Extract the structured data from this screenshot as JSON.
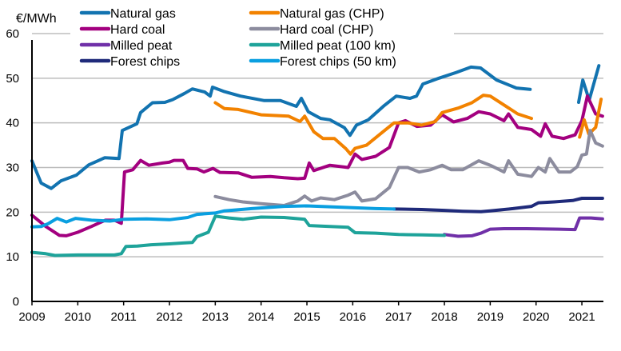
{
  "chart_data": {
    "type": "line",
    "ylabel": "€/MWh",
    "xlim": [
      2009,
      2021.47
    ],
    "ylim": [
      0,
      60
    ],
    "yticks": [
      "0",
      "10",
      "20",
      "30",
      "40",
      "50",
      "60"
    ],
    "xticks": [
      "2009",
      "2010",
      "2011",
      "2012",
      "2013",
      "2014",
      "2015",
      "2016",
      "2017",
      "2018",
      "2019",
      "2020",
      "2021"
    ],
    "grid": "horizontal",
    "legend_position": "top",
    "series": [
      {
        "name": "Natural gas",
        "color": "#1273b0",
        "points": [
          [
            2009.0,
            31.5
          ],
          [
            2009.2,
            26.5
          ],
          [
            2009.42,
            25.3
          ],
          [
            2009.63,
            27
          ],
          [
            2009.97,
            28.3
          ],
          [
            2010.24,
            30.6
          ],
          [
            2010.59,
            32.2
          ],
          [
            2010.9,
            32
          ],
          [
            2010.97,
            38.3
          ],
          [
            2011.29,
            39.8
          ],
          [
            2011.37,
            42.3
          ],
          [
            2011.63,
            44.5
          ],
          [
            2011.9,
            44.6
          ],
          [
            2012.07,
            45.2
          ],
          [
            2012.33,
            46.6
          ],
          [
            2012.5,
            47.6
          ],
          [
            2012.77,
            46.9
          ],
          [
            2012.89,
            46
          ],
          [
            2012.94,
            48
          ],
          [
            2013.2,
            47
          ],
          [
            2013.55,
            46
          ],
          [
            2014.07,
            45
          ],
          [
            2014.42,
            45
          ],
          [
            2014.77,
            43.7
          ],
          [
            2014.88,
            45.5
          ],
          [
            2015.03,
            42.5
          ],
          [
            2015.3,
            41
          ],
          [
            2015.5,
            40.7
          ],
          [
            2015.82,
            38.9
          ],
          [
            2015.94,
            37.2
          ],
          [
            2016.08,
            39.5
          ],
          [
            2016.34,
            40.7
          ],
          [
            2016.69,
            43.9
          ],
          [
            2016.95,
            46
          ],
          [
            2017.25,
            45.5
          ],
          [
            2017.39,
            46
          ],
          [
            2017.53,
            48.7
          ],
          [
            2017.88,
            50
          ],
          [
            2018.26,
            51.3
          ],
          [
            2018.58,
            52.5
          ],
          [
            2018.79,
            52.3
          ],
          [
            2019.14,
            49.6
          ],
          [
            2019.57,
            47.8
          ],
          [
            2019.87,
            47.5
          ],
          null,
          [
            2020.93,
            44.6
          ],
          [
            2021.02,
            49.6
          ],
          [
            2021.16,
            45.1
          ],
          [
            2021.37,
            52.8
          ]
        ]
      },
      {
        "name": "Hard coal",
        "color": "#a3007f",
        "points": [
          [
            2009.0,
            19.3
          ],
          [
            2009.3,
            16.8
          ],
          [
            2009.6,
            14.8
          ],
          [
            2009.75,
            14.7
          ],
          [
            2010.0,
            15.5
          ],
          [
            2010.3,
            16.8
          ],
          [
            2010.6,
            18.2
          ],
          [
            2010.8,
            18.2
          ],
          [
            2010.95,
            17.5
          ],
          [
            2011.02,
            29
          ],
          [
            2011.2,
            29.5
          ],
          [
            2011.37,
            31.6
          ],
          [
            2011.55,
            30.5
          ],
          [
            2011.85,
            31
          ],
          [
            2012.0,
            31.2
          ],
          [
            2012.1,
            31.6
          ],
          [
            2012.3,
            31.6
          ],
          [
            2012.4,
            29.8
          ],
          [
            2012.6,
            29.7
          ],
          [
            2012.75,
            29
          ],
          [
            2012.95,
            29.8
          ],
          [
            2013.1,
            28.9
          ],
          [
            2013.5,
            28.8
          ],
          [
            2013.8,
            27.8
          ],
          [
            2014.2,
            28
          ],
          [
            2014.5,
            27.7
          ],
          [
            2014.8,
            27.5
          ],
          [
            2014.95,
            27.6
          ],
          [
            2015.05,
            31
          ],
          [
            2015.15,
            29.3
          ],
          [
            2015.5,
            30.5
          ],
          [
            2015.9,
            30
          ],
          [
            2016.05,
            33
          ],
          [
            2016.2,
            31.8
          ],
          [
            2016.5,
            32.5
          ],
          [
            2016.8,
            34.5
          ],
          [
            2017.0,
            40
          ],
          [
            2017.15,
            40.5
          ],
          [
            2017.4,
            39.2
          ],
          [
            2017.7,
            39.5
          ],
          [
            2017.95,
            41.8
          ],
          [
            2018.2,
            40.2
          ],
          [
            2018.5,
            41
          ],
          [
            2018.75,
            42.5
          ],
          [
            2019.0,
            42
          ],
          [
            2019.3,
            40.5
          ],
          [
            2019.4,
            42
          ],
          [
            2019.6,
            39
          ],
          [
            2019.9,
            38.5
          ],
          [
            2020.1,
            37
          ],
          [
            2020.2,
            39.8
          ],
          [
            2020.35,
            37
          ],
          [
            2020.6,
            36.5
          ],
          [
            2020.85,
            37.3
          ],
          [
            2021.0,
            40.5
          ],
          [
            2021.12,
            46
          ],
          [
            2021.3,
            42
          ],
          [
            2021.45,
            41.5
          ]
        ]
      },
      {
        "name": "Milled peat",
        "color": "#7030a8",
        "points": [
          [
            2018.0,
            15
          ],
          [
            2018.3,
            14.6
          ],
          [
            2018.6,
            14.7
          ],
          [
            2018.8,
            15.3
          ],
          [
            2019.0,
            16.2
          ],
          [
            2019.3,
            16.3
          ],
          [
            2019.8,
            16.3
          ],
          [
            2020.5,
            16.2
          ],
          [
            2020.85,
            16.1
          ],
          [
            2020.95,
            18.7
          ],
          [
            2021.2,
            18.7
          ],
          [
            2021.45,
            18.5
          ]
        ]
      },
      {
        "name": "Forest chips",
        "color": "#1f2a7a",
        "points": [
          [
            2016.9,
            20.7
          ],
          [
            2017.5,
            20.6
          ],
          [
            2018.0,
            20.4
          ],
          [
            2018.4,
            20.2
          ],
          [
            2018.8,
            20.1
          ],
          [
            2019.0,
            20.3
          ],
          [
            2019.5,
            20.8
          ],
          [
            2019.9,
            21.3
          ],
          [
            2020.05,
            22.1
          ],
          [
            2020.4,
            22.3
          ],
          [
            2020.8,
            22.6
          ],
          [
            2021.0,
            23.1
          ],
          [
            2021.45,
            23.1
          ]
        ]
      },
      {
        "name": "Natural gas (CHP)",
        "color": "#f28200",
        "points": [
          [
            2013.0,
            44.5
          ],
          [
            2013.2,
            43.2
          ],
          [
            2013.5,
            43
          ],
          [
            2014.0,
            41.8
          ],
          [
            2014.6,
            41.5
          ],
          [
            2014.85,
            40.3
          ],
          [
            2014.95,
            41.5
          ],
          [
            2015.15,
            38
          ],
          [
            2015.35,
            36.5
          ],
          [
            2015.6,
            36.5
          ],
          [
            2015.85,
            34.2
          ],
          [
            2015.95,
            33
          ],
          [
            2016.05,
            34.3
          ],
          [
            2016.3,
            35
          ],
          [
            2016.6,
            37.5
          ],
          [
            2016.9,
            40
          ],
          [
            2017.2,
            40
          ],
          [
            2017.5,
            39.5
          ],
          [
            2017.8,
            40.3
          ],
          [
            2017.95,
            42.3
          ],
          [
            2018.3,
            43.3
          ],
          [
            2018.6,
            44.5
          ],
          [
            2018.85,
            46.2
          ],
          [
            2019.0,
            46
          ],
          [
            2019.3,
            44
          ],
          [
            2019.6,
            42
          ],
          [
            2019.9,
            41
          ],
          null,
          [
            2020.95,
            36.8
          ],
          [
            2021.05,
            40.7
          ],
          [
            2021.15,
            37.5
          ],
          [
            2021.3,
            39
          ],
          [
            2021.42,
            45.3
          ]
        ]
      },
      {
        "name": "Hard coal (CHP)",
        "color": "#8c8c9e",
        "points": [
          [
            2013.0,
            23.5
          ],
          [
            2013.3,
            22.8
          ],
          [
            2013.6,
            22.3
          ],
          [
            2014.0,
            21.9
          ],
          [
            2014.5,
            21.5
          ],
          [
            2014.8,
            22.5
          ],
          [
            2014.95,
            23.6
          ],
          [
            2015.1,
            22.5
          ],
          [
            2015.3,
            23.2
          ],
          [
            2015.6,
            22.8
          ],
          [
            2015.9,
            23.8
          ],
          [
            2016.05,
            24.5
          ],
          [
            2016.2,
            22.5
          ],
          [
            2016.5,
            23
          ],
          [
            2016.8,
            25.5
          ],
          [
            2017.0,
            30
          ],
          [
            2017.2,
            30
          ],
          [
            2017.45,
            29
          ],
          [
            2017.7,
            29.5
          ],
          [
            2017.95,
            30.5
          ],
          [
            2018.15,
            29.5
          ],
          [
            2018.4,
            29.5
          ],
          [
            2018.75,
            31.5
          ],
          [
            2019.0,
            30.5
          ],
          [
            2019.3,
            29
          ],
          [
            2019.4,
            31.5
          ],
          [
            2019.6,
            28.5
          ],
          [
            2019.9,
            28
          ],
          [
            2020.05,
            30
          ],
          [
            2020.2,
            29
          ],
          [
            2020.3,
            32
          ],
          [
            2020.5,
            29
          ],
          [
            2020.75,
            29
          ],
          [
            2020.9,
            30.2
          ],
          [
            2021.0,
            32.8
          ],
          [
            2021.1,
            33
          ],
          [
            2021.18,
            38.3
          ],
          [
            2021.3,
            35.5
          ],
          [
            2021.45,
            34.8
          ]
        ]
      },
      {
        "name": "Milled peat (100 km)",
        "color": "#1ea39a",
        "points": [
          [
            2009.0,
            11
          ],
          [
            2009.3,
            10.7
          ],
          [
            2009.5,
            10.3
          ],
          [
            2010.0,
            10.4
          ],
          [
            2010.5,
            10.4
          ],
          [
            2010.8,
            10.4
          ],
          [
            2010.95,
            10.7
          ],
          [
            2011.05,
            12.3
          ],
          [
            2011.3,
            12.4
          ],
          [
            2011.6,
            12.7
          ],
          [
            2012.0,
            12.9
          ],
          [
            2012.3,
            13.1
          ],
          [
            2012.5,
            13.2
          ],
          [
            2012.6,
            14.5
          ],
          [
            2012.85,
            15.5
          ],
          [
            2013.0,
            19.1
          ],
          [
            2013.3,
            18.7
          ],
          [
            2013.6,
            18.4
          ],
          [
            2014.0,
            18.9
          ],
          [
            2014.5,
            18.8
          ],
          [
            2014.95,
            18.4
          ],
          [
            2015.05,
            17
          ],
          [
            2015.5,
            16.8
          ],
          [
            2015.9,
            16.6
          ],
          [
            2016.05,
            15.4
          ],
          [
            2016.5,
            15.3
          ],
          [
            2017.0,
            15
          ],
          [
            2017.5,
            14.9
          ],
          [
            2018.0,
            14.8
          ]
        ]
      },
      {
        "name": "Forest chips (50 km)",
        "color": "#0a9fe0",
        "points": [
          [
            2009.0,
            16.7
          ],
          [
            2009.2,
            16.8
          ],
          [
            2009.35,
            17.4
          ],
          [
            2009.55,
            18.6
          ],
          [
            2009.75,
            17.8
          ],
          [
            2009.95,
            18.6
          ],
          [
            2010.3,
            18.2
          ],
          [
            2010.7,
            18
          ],
          [
            2011.0,
            18.4
          ],
          [
            2011.5,
            18.5
          ],
          [
            2012.0,
            18.3
          ],
          [
            2012.4,
            18.8
          ],
          [
            2012.6,
            19.5
          ],
          [
            2013.0,
            19.8
          ],
          [
            2013.2,
            20.3
          ],
          [
            2013.8,
            20.8
          ],
          [
            2014.5,
            21.3
          ],
          [
            2015.0,
            21.4
          ],
          [
            2015.5,
            21.2
          ],
          [
            2016.0,
            21
          ],
          [
            2016.5,
            20.8
          ],
          [
            2016.9,
            20.7
          ]
        ]
      }
    ]
  }
}
